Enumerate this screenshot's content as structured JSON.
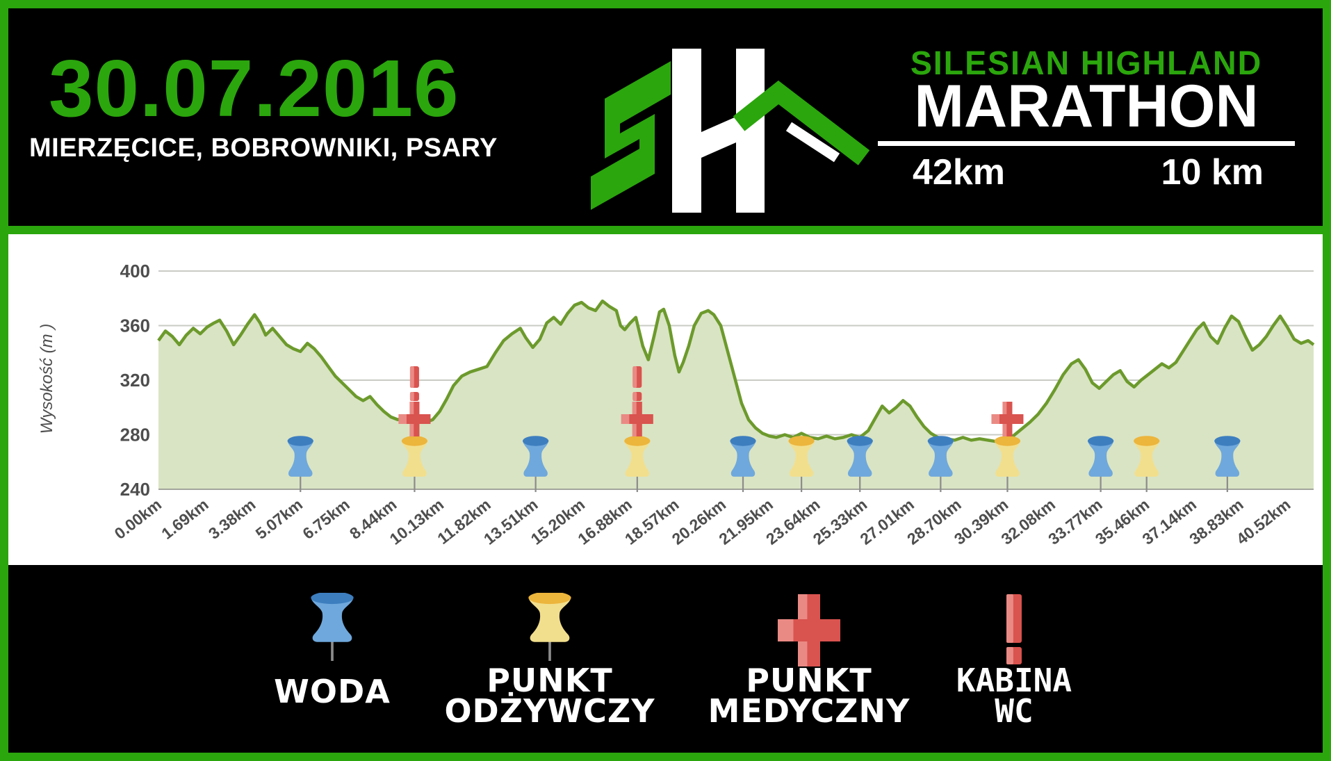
{
  "header": {
    "date": "30.07.2016",
    "locations": "MIERZĘCICE, BOBROWNIKI, PSARY",
    "logo": "SH mountain logo",
    "title_top": "SILESIAN HIGHLAND",
    "title_main": "MARATHON",
    "distance_42": "42km",
    "distance_10": "10 km"
  },
  "colors": {
    "brand_green": "#2BA60D",
    "black": "#000000",
    "white": "#FFFFFF",
    "line_green": "#6C9A2C",
    "area_fill": "#D9E4C4",
    "gridline": "#C9CBC4",
    "axis_text": "#4E4E4E",
    "water_pin_body": "#6FA8DC",
    "water_pin_cap": "#3D7EBF",
    "food_pin_body": "#F2DF8D",
    "food_pin_cap": "#ECB53C",
    "medical_red": "#D9534F",
    "medical_red_light": "#EA8A84",
    "pin_needle": "#8C8C8C"
  },
  "chart_data": {
    "type": "area",
    "title": "",
    "xlabel": "",
    "ylabel": "Wysokość (m )",
    "ylim": [
      240,
      400
    ],
    "xlim_km": [
      0,
      41.5
    ],
    "yticks": [
      400,
      360,
      320,
      280,
      240
    ],
    "x_tick_step_km": 1.69,
    "x_tick_labels": [
      "0.00km",
      "1.69km",
      "3.38km",
      "5.07km",
      "6.75km",
      "8.44km",
      "10.13km",
      "11.82km",
      "13.51km",
      "15.20km",
      "16.88km",
      "18.57km",
      "20.26km",
      "21.95km",
      "23.64km",
      "25.33km",
      "27.01km",
      "28.70km",
      "30.39km",
      "32.08km",
      "33.77km",
      "35.46km",
      "37.14km",
      "38.83km",
      "40.52km"
    ],
    "grid": true,
    "profile_km_m": [
      [
        0,
        349
      ],
      [
        0.25,
        356
      ],
      [
        0.5,
        352
      ],
      [
        0.75,
        346
      ],
      [
        1,
        353
      ],
      [
        1.25,
        358
      ],
      [
        1.5,
        354
      ],
      [
        1.75,
        359
      ],
      [
        2,
        362
      ],
      [
        2.2,
        364
      ],
      [
        2.45,
        356
      ],
      [
        2.7,
        346
      ],
      [
        2.95,
        353
      ],
      [
        3.2,
        361
      ],
      [
        3.45,
        368
      ],
      [
        3.65,
        362
      ],
      [
        3.85,
        353
      ],
      [
        4.1,
        358
      ],
      [
        4.35,
        352
      ],
      [
        4.6,
        346
      ],
      [
        4.85,
        343
      ],
      [
        5.1,
        341
      ],
      [
        5.35,
        347
      ],
      [
        5.6,
        343
      ],
      [
        5.85,
        337
      ],
      [
        6.1,
        330
      ],
      [
        6.35,
        323
      ],
      [
        6.6,
        318
      ],
      [
        6.85,
        313
      ],
      [
        7.1,
        308
      ],
      [
        7.35,
        305
      ],
      [
        7.6,
        308
      ],
      [
        7.85,
        302
      ],
      [
        8.1,
        297
      ],
      [
        8.35,
        293
      ],
      [
        8.6,
        291
      ],
      [
        8.85,
        293
      ],
      [
        9.1,
        290
      ],
      [
        9.35,
        292
      ],
      [
        9.6,
        289
      ],
      [
        9.85,
        291
      ],
      [
        10.1,
        297
      ],
      [
        10.35,
        306
      ],
      [
        10.6,
        316
      ],
      [
        10.9,
        323
      ],
      [
        11.2,
        326
      ],
      [
        11.5,
        328
      ],
      [
        11.8,
        330
      ],
      [
        12.1,
        340
      ],
      [
        12.4,
        349
      ],
      [
        12.7,
        354
      ],
      [
        13,
        358
      ],
      [
        13.2,
        351
      ],
      [
        13.45,
        344
      ],
      [
        13.7,
        350
      ],
      [
        13.95,
        362
      ],
      [
        14.2,
        366
      ],
      [
        14.45,
        361
      ],
      [
        14.7,
        369
      ],
      [
        14.95,
        375
      ],
      [
        15.2,
        377
      ],
      [
        15.45,
        373
      ],
      [
        15.7,
        371
      ],
      [
        15.95,
        378
      ],
      [
        16.2,
        374
      ],
      [
        16.45,
        371
      ],
      [
        16.6,
        360
      ],
      [
        16.75,
        357
      ],
      [
        16.95,
        362
      ],
      [
        17.15,
        366
      ],
      [
        17.4,
        345
      ],
      [
        17.6,
        335
      ],
      [
        17.8,
        352
      ],
      [
        18,
        370
      ],
      [
        18.15,
        372
      ],
      [
        18.35,
        360
      ],
      [
        18.55,
        338
      ],
      [
        18.7,
        326
      ],
      [
        18.85,
        333
      ],
      [
        19.05,
        345
      ],
      [
        19.25,
        360
      ],
      [
        19.5,
        369
      ],
      [
        19.75,
        371
      ],
      [
        19.95,
        368
      ],
      [
        20.2,
        360
      ],
      [
        20.45,
        341
      ],
      [
        20.7,
        322
      ],
      [
        20.95,
        303
      ],
      [
        21.2,
        291
      ],
      [
        21.45,
        285
      ],
      [
        21.7,
        281
      ],
      [
        21.95,
        279
      ],
      [
        22.2,
        278
      ],
      [
        22.5,
        280
      ],
      [
        22.8,
        278
      ],
      [
        23.1,
        281
      ],
      [
        23.4,
        278
      ],
      [
        23.7,
        277
      ],
      [
        24,
        279
      ],
      [
        24.3,
        277
      ],
      [
        24.6,
        278
      ],
      [
        24.9,
        280
      ],
      [
        25.2,
        278
      ],
      [
        25.5,
        283
      ],
      [
        25.75,
        292
      ],
      [
        26,
        301
      ],
      [
        26.25,
        296
      ],
      [
        26.5,
        300
      ],
      [
        26.75,
        305
      ],
      [
        27,
        301
      ],
      [
        27.25,
        293
      ],
      [
        27.5,
        286
      ],
      [
        27.75,
        281
      ],
      [
        28,
        278
      ],
      [
        28.3,
        277
      ],
      [
        28.6,
        276
      ],
      [
        28.9,
        278
      ],
      [
        29.2,
        276
      ],
      [
        29.5,
        277
      ],
      [
        29.8,
        276
      ],
      [
        30.1,
        275
      ],
      [
        30.4,
        277
      ],
      [
        30.7,
        279
      ],
      [
        31,
        284
      ],
      [
        31.3,
        289
      ],
      [
        31.6,
        295
      ],
      [
        31.9,
        303
      ],
      [
        32.2,
        313
      ],
      [
        32.5,
        324
      ],
      [
        32.8,
        332
      ],
      [
        33.05,
        335
      ],
      [
        33.3,
        328
      ],
      [
        33.55,
        318
      ],
      [
        33.8,
        314
      ],
      [
        34.05,
        319
      ],
      [
        34.3,
        324
      ],
      [
        34.55,
        327
      ],
      [
        34.8,
        319
      ],
      [
        35.05,
        315
      ],
      [
        35.3,
        320
      ],
      [
        35.55,
        324
      ],
      [
        35.8,
        328
      ],
      [
        36.05,
        332
      ],
      [
        36.3,
        329
      ],
      [
        36.55,
        333
      ],
      [
        36.8,
        341
      ],
      [
        37.05,
        349
      ],
      [
        37.3,
        357
      ],
      [
        37.55,
        362
      ],
      [
        37.8,
        352
      ],
      [
        38.05,
        347
      ],
      [
        38.3,
        358
      ],
      [
        38.55,
        367
      ],
      [
        38.8,
        363
      ],
      [
        39.05,
        352
      ],
      [
        39.3,
        342
      ],
      [
        39.55,
        346
      ],
      [
        39.8,
        352
      ],
      [
        40.05,
        360
      ],
      [
        40.3,
        367
      ],
      [
        40.55,
        359
      ],
      [
        40.8,
        350
      ],
      [
        41.05,
        347
      ],
      [
        41.3,
        349
      ],
      [
        41.5,
        346
      ]
    ],
    "markers": {
      "water_km": [
        5.1,
        13.55,
        21.0,
        25.2,
        28.1,
        33.85,
        38.4
      ],
      "food_km": [
        9.2,
        17.2,
        23.1,
        30.5,
        35.5
      ],
      "medical_km": [
        9.2,
        17.2,
        30.5
      ],
      "wc_km": [
        9.2,
        17.2
      ]
    }
  },
  "legend": {
    "items": [
      {
        "icon": "water-pin-icon",
        "line1": "WODA",
        "line2": ""
      },
      {
        "icon": "food-pin-icon",
        "line1": "PUNKT",
        "line2": "ODŻYWCZY"
      },
      {
        "icon": "medical-cross-icon",
        "line1": "PUNKT",
        "line2": "MEDYCZNY"
      },
      {
        "icon": "wc-mark-icon",
        "line1": "KABINA",
        "line2": "WC"
      }
    ]
  }
}
